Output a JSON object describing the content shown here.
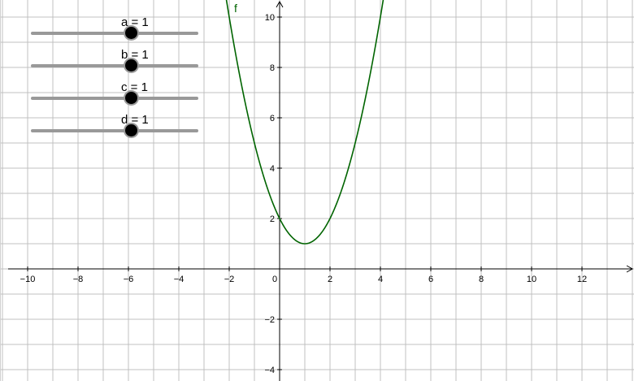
{
  "graph": {
    "function_label": "f",
    "function_color": "#006400",
    "axis_color": "#000000",
    "grid_color": "#c0c0c0",
    "x_tick_labels": [
      "−10",
      "−8",
      "−6",
      "−4",
      "−2",
      "0",
      "2",
      "4",
      "6",
      "8",
      "10",
      "12"
    ],
    "y_tick_labels": [
      "10",
      "8",
      "6",
      "4",
      "2",
      "−2",
      "−4"
    ]
  },
  "chart_data": {
    "type": "line",
    "xlim": [
      -10.4,
      14.0
    ],
    "ylim": [
      -4.2,
      10.6
    ],
    "grid": true,
    "series": [
      {
        "name": "f",
        "expression": "a·(x − b)² + c·d",
        "values": "quadratic with vertex (1, 1) through (0, 2) and (2, 2)"
      }
    ]
  },
  "sliders": [
    {
      "name": "a",
      "label": "a = 1",
      "value": 1
    },
    {
      "name": "b",
      "label": "b = 1",
      "value": 1
    },
    {
      "name": "c",
      "label": "c = 1",
      "value": 1
    },
    {
      "name": "d",
      "label": "d = 1",
      "value": 1
    }
  ]
}
